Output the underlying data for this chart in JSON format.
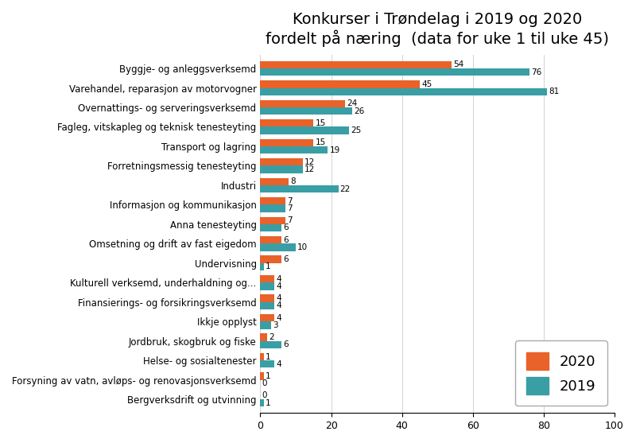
{
  "title": "Konkurser i Trøndelag i 2019 og 2020\nfordelt på næring  (data for uke 1 til uke 45)",
  "categories": [
    "Byggje- og anleggsverksemd",
    "Varehandel, reparasjon av motorvogner",
    "Overnattings- og serveringsverksemd",
    "Fagleg, vitskapleg og teknisk tenesteyting",
    "Transport og lagring",
    "Forretningsmessig tenesteyting",
    "Industri",
    "Informasjon og kommunikasjon",
    "Anna tenesteyting",
    "Omsetning og drift av fast eigedom",
    "Undervisning",
    "Kulturell verksemd, underhaldning og...",
    "Finansierings- og forsikringsverksemd",
    "Ikkje opplyst",
    "Jordbruk, skogbruk og fiske",
    "Helse- og sosialtenester",
    "Forsyning av vatn, avløps- og renovasjonsverksemd",
    "Bergverksdrift og utvinning"
  ],
  "values_2020": [
    54,
    45,
    24,
    15,
    15,
    12,
    8,
    7,
    7,
    6,
    6,
    4,
    4,
    4,
    2,
    1,
    1,
    0
  ],
  "values_2019": [
    76,
    81,
    26,
    25,
    19,
    12,
    22,
    7,
    6,
    10,
    1,
    4,
    4,
    3,
    6,
    4,
    0,
    1
  ],
  "color_2020": "#E8622A",
  "color_2019": "#3A9EA5",
  "xlim": [
    0,
    100
  ],
  "bar_height": 0.38,
  "title_fontsize": 14,
  "label_fontsize": 8.5,
  "tick_fontsize": 9,
  "value_fontsize": 7.5
}
